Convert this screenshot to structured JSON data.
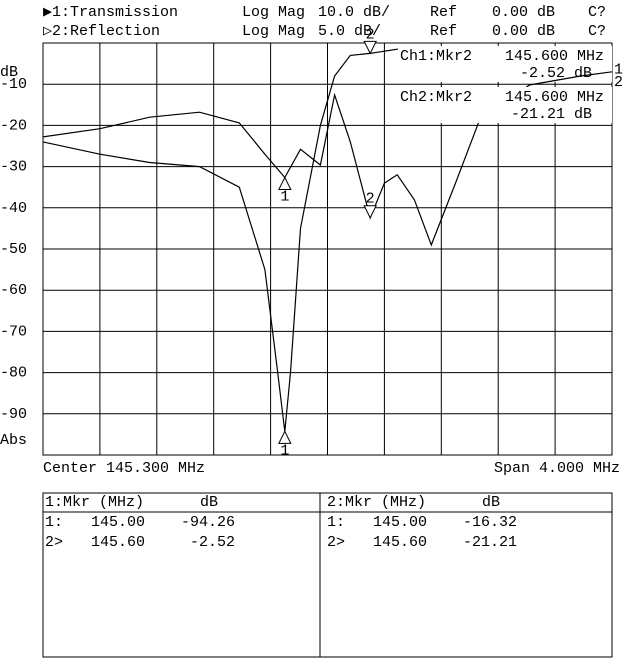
{
  "chart_data": {
    "type": "line",
    "channels": [
      {
        "id": "▶1:Transmission",
        "format": "Log Mag",
        "scale": "10.0 dB/",
        "ref_label": "Ref",
        "ref": "0.00 dB",
        "status": "C?"
      },
      {
        "id": "▷2:Reflection",
        "format": "Log Mag",
        "scale": "5.0 dB/",
        "ref_label": "Ref",
        "ref": "0.00 dB",
        "status": "C?"
      }
    ],
    "y_unit_top": "dB",
    "y_unit_bottom": "Abs",
    "center": "Center 145.300 MHz",
    "span": "Span 4.000 MHz",
    "xlim": [
      143.3,
      147.3
    ],
    "ylim": [
      -100,
      0
    ],
    "y2lim": [
      -50,
      0
    ],
    "yticks": [
      -10,
      -20,
      -30,
      -40,
      -50,
      -60,
      -70,
      -80,
      -90
    ],
    "grid": true,
    "series": [
      {
        "name": "1",
        "color": "#000000",
        "x": [
          143.3,
          143.7,
          144.05,
          144.4,
          144.68,
          144.86,
          144.95,
          145.0,
          145.04,
          145.11,
          145.25,
          145.35,
          145.46,
          145.6,
          145.79,
          146.37,
          146.72,
          147.08,
          147.3
        ],
        "values": [
          -24,
          -27,
          -29,
          -30,
          -35,
          -55,
          -80,
          -94.26,
          -80,
          -45,
          -20,
          -8,
          -3,
          -2.52,
          -1.5,
          -1.2,
          -2,
          -3.5,
          -5
        ],
        "markers": [
          {
            "label": "1",
            "x": 145.0,
            "value": -94.26,
            "pointer": "up"
          },
          {
            "label": "2",
            "x": 145.6,
            "value": -2.52,
            "pointer": "down"
          }
        ],
        "readout": [
          "Ch1:Mkr2",
          "145.600 MHz",
          "-2.52 dB"
        ]
      },
      {
        "name": "2",
        "color": "#000000",
        "axis": "y2",
        "x": [
          143.3,
          143.7,
          144.05,
          144.4,
          144.68,
          144.86,
          145.0,
          145.11,
          145.25,
          145.35,
          145.46,
          145.6,
          145.7,
          145.79,
          145.91,
          146.03,
          146.2,
          146.37,
          146.72,
          147.08,
          147.3
        ],
        "values": [
          -11.4,
          -10.4,
          -9.0,
          -8.4,
          -9.7,
          -13.5,
          -16.32,
          -12.9,
          -14.8,
          -6.3,
          -12,
          -21.21,
          -17,
          -16,
          -19,
          -24.5,
          -17,
          -9.3,
          -5.1,
          -4.0,
          -3.5
        ],
        "markers": [
          {
            "label": "1",
            "x": 145.0,
            "value": -16.32,
            "pointer": "up"
          },
          {
            "label": "2",
            "x": 145.6,
            "value": -21.21,
            "pointer": "down"
          }
        ],
        "readout": [
          "Ch2:Mkr2",
          "145.600 MHz",
          "-21.21 dB"
        ]
      }
    ]
  },
  "marker_table": [
    {
      "header": [
        "1:Mkr (MHz)",
        "dB"
      ],
      "rows": [
        [
          "1:",
          "145.00",
          "-94.26"
        ],
        [
          "2>",
          "145.60",
          "-2.52"
        ]
      ]
    },
    {
      "header": [
        "2:Mkr (MHz)",
        "dB"
      ],
      "rows": [
        [
          "1:",
          "145.00",
          "-16.32"
        ],
        [
          "2>",
          "145.60",
          "-21.21"
        ]
      ]
    }
  ]
}
